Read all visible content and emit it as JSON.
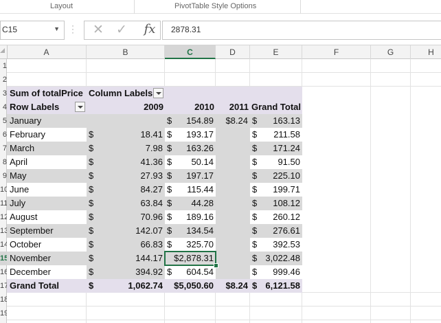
{
  "ribbon": {
    "groups": [
      "Layout",
      "PivotTable Style Options"
    ]
  },
  "formula_bar": {
    "name_box": "C15",
    "formula_value": "2878.31",
    "cancel_icon": "✕",
    "confirm_icon": "✓",
    "fx_label": "fx"
  },
  "columns": [
    "A",
    "B",
    "C",
    "D",
    "E",
    "F",
    "G",
    "H"
  ],
  "selected_column": "C",
  "rows": [
    "1",
    "2",
    "3",
    "4",
    "5",
    "6",
    "7",
    "8",
    "9",
    "10",
    "11",
    "12",
    "13",
    "14",
    "15",
    "16",
    "17",
    "18",
    "19"
  ],
  "selected_row": "15",
  "pivot": {
    "value_header": "Sum of totalPrice",
    "column_labels": "Column Labels",
    "row_labels": "Row Labels",
    "years": [
      "2009",
      "2010",
      "2011"
    ],
    "grand_total_header": "Grand Total",
    "months": [
      {
        "month": "January",
        "y2009": "",
        "y2010": "154.89",
        "y2011": "$8.24",
        "total": "163.13"
      },
      {
        "month": "February",
        "y2009": "18.41",
        "y2010": "193.17",
        "y2011": "",
        "total": "211.58"
      },
      {
        "month": "March",
        "y2009": "7.98",
        "y2010": "163.26",
        "y2011": "",
        "total": "171.24"
      },
      {
        "month": "April",
        "y2009": "41.36",
        "y2010": "50.14",
        "y2011": "",
        "total": "91.50"
      },
      {
        "month": "May",
        "y2009": "27.93",
        "y2010": "197.17",
        "y2011": "",
        "total": "225.10"
      },
      {
        "month": "June",
        "y2009": "84.27",
        "y2010": "115.44",
        "y2011": "",
        "total": "199.71"
      },
      {
        "month": "July",
        "y2009": "63.84",
        "y2010": "44.28",
        "y2011": "",
        "total": "108.12"
      },
      {
        "month": "August",
        "y2009": "70.96",
        "y2010": "189.16",
        "y2011": "",
        "total": "260.12"
      },
      {
        "month": "September",
        "y2009": "142.07",
        "y2010": "134.54",
        "y2011": "",
        "total": "276.61"
      },
      {
        "month": "October",
        "y2009": "66.83",
        "y2010": "325.70",
        "y2011": "",
        "total": "392.53"
      },
      {
        "month": "November",
        "y2009": "144.17",
        "y2010": "2,878.31",
        "y2011": "",
        "total": "3,022.48"
      },
      {
        "month": "December",
        "y2009": "394.92",
        "y2010": "604.54",
        "y2011": "",
        "total": "999.46"
      }
    ],
    "grand_total_row": {
      "label": "Grand Total",
      "y2009": "1,062.74",
      "y2010": "$5,050.60",
      "y2011": "$8.24",
      "total": "6,121.58"
    },
    "currency_symbol": "$"
  },
  "colors": {
    "excel_green": "#217346",
    "pivot_header_purple": "#e4dfec",
    "pivot_band_gray": "#d9d9d9"
  }
}
